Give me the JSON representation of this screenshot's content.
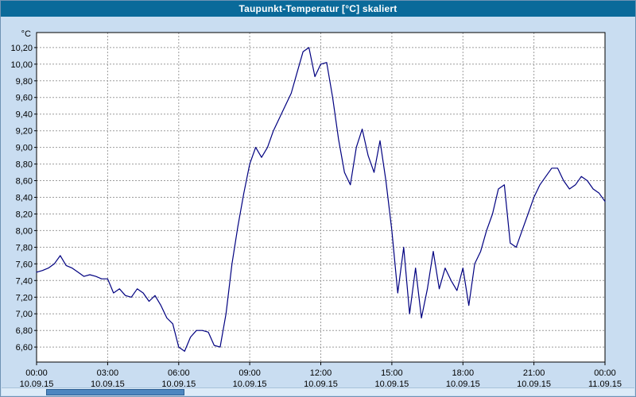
{
  "window": {
    "title": "Taupunkt-Temperatur [°C] skaliert"
  },
  "colors": {
    "titlebar_bg": "#0a6a9a",
    "window_bg": "#c9ddf1",
    "plot_bg": "#ffffff",
    "line": "#000080",
    "grid": "#9c9c9c",
    "axis": "#000000"
  },
  "chart_data": {
    "type": "line",
    "title": "Taupunkt-Temperatur [°C] skaliert",
    "ylabel": "°C",
    "xlabel": "",
    "series_name": "Taupunkt-Temperatur",
    "grid": true,
    "legend": false,
    "xlim": [
      0,
      24
    ],
    "ylim": [
      6.42,
      10.38
    ],
    "x_ticks": [
      0,
      3,
      6,
      9,
      12,
      15,
      18,
      21,
      24
    ],
    "x_tick_labels": [
      "00:00",
      "03:00",
      "06:00",
      "09:00",
      "12:00",
      "15:00",
      "18:00",
      "21:00",
      "00:00"
    ],
    "x_date_labels": [
      "10.09.15",
      "10.09.15",
      "10.09.15",
      "10.09.15",
      "10.09.15",
      "10.09.15",
      "10.09.15",
      "10.09.15",
      "11.09.15"
    ],
    "y_ticks": [
      6.6,
      6.8,
      7.0,
      7.2,
      7.4,
      7.6,
      7.8,
      8.0,
      8.2,
      8.4,
      8.6,
      8.8,
      9.0,
      9.2,
      9.4,
      9.6,
      9.8,
      10.0,
      10.2
    ],
    "y_tick_labels": [
      "6,60",
      "6,80",
      "7,00",
      "7,20",
      "7,40",
      "7,60",
      "7,80",
      "8,00",
      "8,20",
      "8,40",
      "8,60",
      "8,80",
      "9,00",
      "9,20",
      "9,40",
      "9,60",
      "9,80",
      "10,00",
      "10,20"
    ],
    "x_hours": [
      0,
      0.25,
      0.5,
      0.75,
      1,
      1.25,
      1.5,
      1.75,
      2,
      2.25,
      2.5,
      2.75,
      3,
      3.25,
      3.5,
      3.75,
      4,
      4.25,
      4.5,
      4.75,
      5,
      5.25,
      5.5,
      5.75,
      6,
      6.25,
      6.5,
      6.75,
      7,
      7.25,
      7.5,
      7.75,
      8,
      8.25,
      8.5,
      8.75,
      9,
      9.25,
      9.5,
      9.75,
      10,
      10.25,
      10.5,
      10.75,
      11,
      11.25,
      11.5,
      11.75,
      12,
      12.25,
      12.5,
      12.75,
      13,
      13.25,
      13.5,
      13.75,
      14,
      14.25,
      14.5,
      14.75,
      15,
      15.25,
      15.5,
      15.75,
      16,
      16.25,
      16.5,
      16.75,
      17,
      17.25,
      17.5,
      17.75,
      18,
      18.25,
      18.5,
      18.75,
      19,
      19.25,
      19.5,
      19.75,
      20,
      20.25,
      20.5,
      20.75,
      21,
      21.25,
      21.5,
      21.75,
      22,
      22.25,
      22.5,
      22.75,
      23,
      23.25,
      23.5,
      23.75,
      24
    ],
    "values": [
      7.5,
      7.52,
      7.55,
      7.6,
      7.7,
      7.58,
      7.55,
      7.5,
      7.45,
      7.47,
      7.45,
      7.42,
      7.42,
      7.25,
      7.3,
      7.22,
      7.2,
      7.3,
      7.25,
      7.15,
      7.22,
      7.1,
      6.95,
      6.88,
      6.6,
      6.55,
      6.72,
      6.8,
      6.8,
      6.78,
      6.62,
      6.6,
      7.0,
      7.6,
      8.05,
      8.45,
      8.8,
      9.0,
      8.88,
      9.0,
      9.2,
      9.35,
      9.5,
      9.65,
      9.9,
      10.15,
      10.2,
      9.85,
      10.0,
      10.02,
      9.6,
      9.1,
      8.7,
      8.55,
      9.0,
      9.22,
      8.9,
      8.7,
      9.08,
      8.6,
      8.0,
      7.25,
      7.8,
      7.0,
      7.55,
      6.95,
      7.3,
      7.75,
      7.3,
      7.55,
      7.4,
      7.28,
      7.55,
      7.1,
      7.6,
      7.75,
      8.0,
      8.2,
      8.5,
      8.55,
      7.85,
      7.8,
      8.0,
      8.2,
      8.4,
      8.55,
      8.65,
      8.75,
      8.75,
      8.6,
      8.5,
      8.55,
      8.65,
      8.6,
      8.5,
      8.45,
      8.35
    ]
  }
}
